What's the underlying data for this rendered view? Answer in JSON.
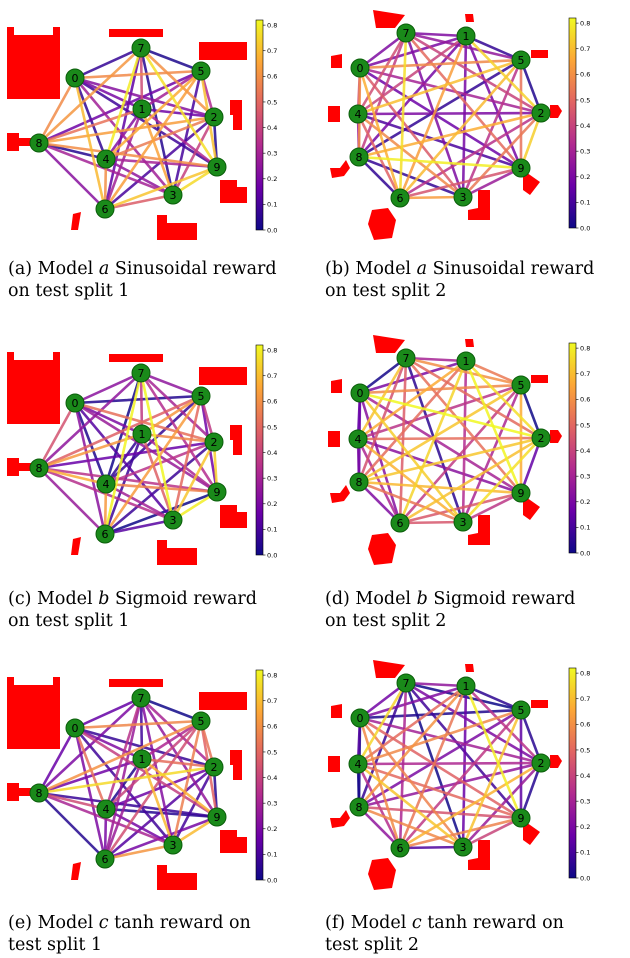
{
  "figure": {
    "panels": [
      {
        "id": "a",
        "layout": "split1",
        "caption_prefix": "(a) Model ",
        "model": "a",
        "caption_suffix": " Sinusoidal reward",
        "caption_line2": "on test split 1",
        "seed": 11
      },
      {
        "id": "b",
        "layout": "split2",
        "caption_prefix": "(b) Model ",
        "model": "a",
        "caption_suffix": " Sinusoidal reward",
        "caption_line2": "on test split 2",
        "seed": 23
      },
      {
        "id": "c",
        "layout": "split1",
        "caption_prefix": "(c) Model ",
        "model": "b",
        "caption_suffix": " Sigmoid reward",
        "caption_line2": "on test split 1",
        "seed": 37
      },
      {
        "id": "d",
        "layout": "split2",
        "caption_prefix": "(d) Model ",
        "model": "b",
        "caption_suffix": " Sigmoid reward",
        "caption_line2": "on test split 2",
        "seed": 41
      },
      {
        "id": "e",
        "layout": "split1",
        "caption_prefix": "(e) Model ",
        "model": "c",
        "caption_suffix": " tanh reward on",
        "caption_line2": "test split 1",
        "seed": 53
      },
      {
        "id": "f",
        "layout": "split2",
        "caption_prefix": "(f) Model ",
        "model": "c",
        "caption_suffix": " tanh reward on",
        "caption_line2": "test split 2",
        "seed": 67
      }
    ],
    "node_labels": [
      "0",
      "1",
      "2",
      "3",
      "4",
      "5",
      "6",
      "7",
      "8",
      "9"
    ],
    "colorbar_ticks": [
      "0.0",
      "0.1",
      "0.2",
      "0.3",
      "0.4",
      "0.5",
      "0.6",
      "0.7",
      "0.8"
    ],
    "colorbar_range": [
      0.0,
      0.82
    ],
    "colors": {
      "node_fill": "#1a8a1a",
      "node_stroke": "#0b5e0b",
      "shape_fill": "#ff0000",
      "colormap": [
        "#0d0887",
        "#6a00a8",
        "#b12a90",
        "#e16462",
        "#fca636",
        "#f0f921"
      ]
    }
  }
}
